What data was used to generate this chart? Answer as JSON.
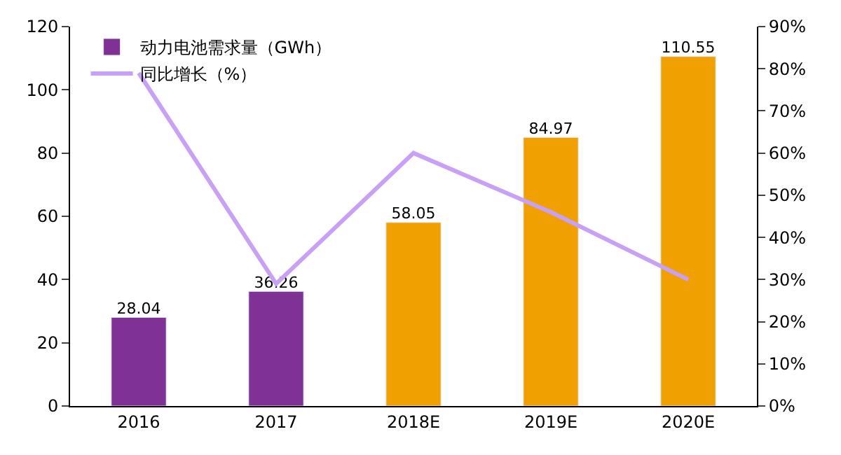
{
  "chart_data": {
    "type": "bar",
    "categories": [
      "2016",
      "2017",
      "2018E",
      "2019E",
      "2020E"
    ],
    "series": [
      {
        "name": "动力电池需求量（GWh）",
        "color": "#7f3196",
        "colors": [
          "#7f3196",
          "#7f3196",
          "#f0a000",
          "#f0a000",
          "#f0a000"
        ],
        "values": [
          28.04,
          36.26,
          58.05,
          84.97,
          110.55
        ],
        "value_labels": [
          "28.04",
          "36.26",
          "58.05",
          "84.97",
          "110.55"
        ]
      },
      {
        "name": "同比增长（%）",
        "type": "line",
        "axis": "y2",
        "color": "#c8a0f5",
        "values": [
          79,
          29,
          60,
          46,
          30
        ]
      }
    ],
    "ylim": [
      0,
      120
    ],
    "yticks": [
      0,
      20,
      40,
      60,
      80,
      100,
      120
    ],
    "y2lim": [
      0,
      90
    ],
    "y2ticks": [
      {
        "value": 0,
        "label": "0%"
      },
      {
        "value": 10,
        "label": "10%"
      },
      {
        "value": 20,
        "label": "20%"
      },
      {
        "value": 30,
        "label": "30%"
      },
      {
        "value": 40,
        "label": "40%"
      },
      {
        "value": 50,
        "label": "50%"
      },
      {
        "value": 60,
        "label": "60%"
      },
      {
        "value": 70,
        "label": "70%"
      },
      {
        "value": 80,
        "label": "80%"
      },
      {
        "value": 90,
        "label": "90%"
      }
    ],
    "legend": "top left",
    "marker": "none",
    "line_style": "solid"
  }
}
